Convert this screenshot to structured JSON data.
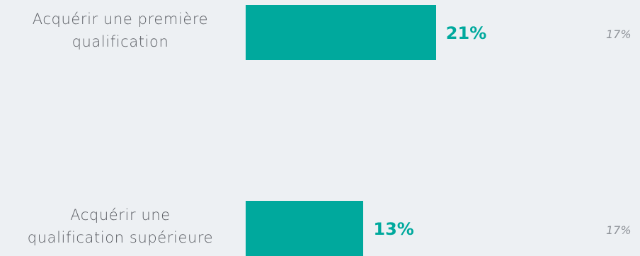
{
  "chart_data": {
    "type": "bar",
    "orientation": "horizontal",
    "unit": "%",
    "xlim": [
      0,
      100
    ],
    "categories": [
      "Acquérir une première qualification",
      "Acquérir une qualification supérieure"
    ],
    "category_lines": [
      [
        "Acquérir une première",
        "qualification"
      ],
      [
        "Acquérir une",
        "qualification supérieure"
      ]
    ],
    "values": [
      21,
      13
    ],
    "value_labels": [
      "21%",
      "13%"
    ],
    "reference_values": [
      17,
      17
    ],
    "reference_labels": [
      "17%",
      "17%"
    ],
    "colors": {
      "bar": "#00a99d",
      "value_text": "#00a99d",
      "reference_text": "#8c9096",
      "label_text": "#5a5d63",
      "background": "#edf0f3"
    }
  }
}
